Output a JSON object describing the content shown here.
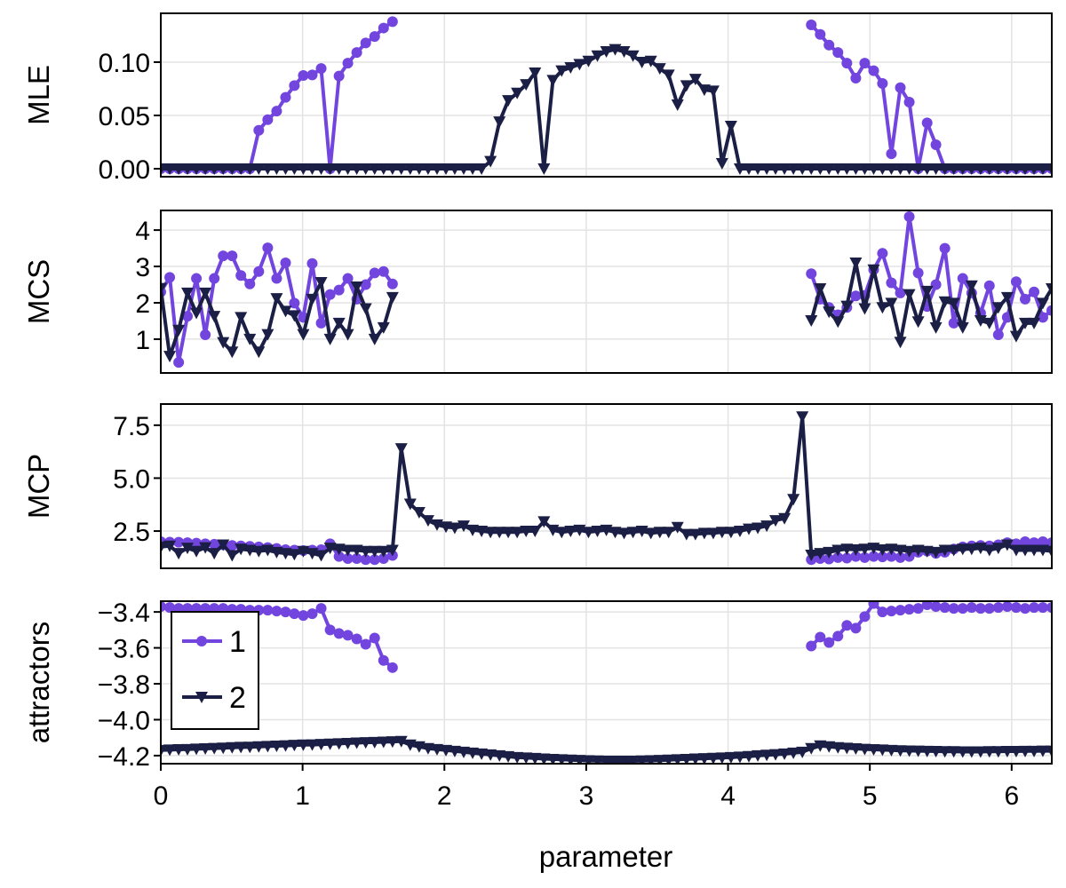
{
  "chart_data": {
    "type": "line",
    "xlabel": "parameter",
    "xlim": [
      0,
      6.283
    ],
    "xticks": [
      0,
      1,
      2,
      3,
      4,
      5,
      6
    ],
    "xtick_labels": [
      "0",
      "1",
      "2",
      "3",
      "4",
      "5",
      "6"
    ],
    "grid": true,
    "colors": {
      "1": "#7245DF",
      "2": "#1B1F45"
    },
    "markers": {
      "1": "circle",
      "2": "triangle-down"
    },
    "x": [
      0.0,
      0.063,
      0.126,
      0.188,
      0.251,
      0.314,
      0.377,
      0.44,
      0.503,
      0.565,
      0.628,
      0.691,
      0.754,
      0.817,
      0.88,
      0.942,
      1.005,
      1.068,
      1.131,
      1.194,
      1.257,
      1.319,
      1.382,
      1.445,
      1.508,
      1.571,
      1.634,
      1.696,
      1.759,
      1.822,
      1.885,
      1.948,
      2.011,
      2.073,
      2.136,
      2.199,
      2.262,
      2.325,
      2.388,
      2.45,
      2.513,
      2.576,
      2.639,
      2.702,
      2.765,
      2.827,
      2.89,
      2.953,
      3.016,
      3.079,
      3.142,
      3.204,
      3.267,
      3.33,
      3.393,
      3.456,
      3.519,
      3.581,
      3.644,
      3.707,
      3.77,
      3.833,
      3.896,
      3.958,
      4.021,
      4.084,
      4.147,
      4.21,
      4.273,
      4.335,
      4.398,
      4.461,
      4.524,
      4.587,
      4.65,
      4.712,
      4.775,
      4.838,
      4.901,
      4.964,
      5.027,
      5.089,
      5.152,
      5.215,
      5.278,
      5.341,
      5.404,
      5.466,
      5.529,
      5.592,
      5.655,
      5.718,
      5.781,
      5.843,
      5.906,
      5.969,
      6.032,
      6.095,
      6.158,
      6.22,
      6.283
    ],
    "panels": [
      {
        "ylabel": "MLE",
        "ylim": [
          -0.0075,
          0.1458
        ],
        "yticks": [
          0,
          0.05,
          0.1
        ],
        "ytick_labels": [
          "0.00",
          "0.05",
          "0.10"
        ],
        "series": [
          {
            "name": "1",
            "values": [
              0,
              0,
              0,
              0,
              0,
              0,
              0,
              0,
              0,
              0,
              0,
              0.036,
              0.046,
              0.054,
              0.067,
              0.078,
              0.0875,
              0.088,
              0.094,
              0,
              0.087,
              0.099,
              0.109,
              0.118,
              0.124,
              0.132,
              0.138,
              null,
              null,
              null,
              null,
              null,
              null,
              null,
              null,
              null,
              null,
              null,
              null,
              null,
              null,
              null,
              null,
              null,
              null,
              null,
              null,
              null,
              null,
              null,
              null,
              null,
              null,
              null,
              null,
              null,
              null,
              null,
              null,
              null,
              null,
              null,
              null,
              null,
              null,
              null,
              null,
              null,
              null,
              null,
              null,
              null,
              null,
              0.135,
              0.126,
              0.116,
              0.109,
              0.099,
              0.085,
              0.099,
              0.092,
              0.08,
              0.014,
              0.076,
              0.0625,
              0,
              0.043,
              0.0225,
              0,
              0,
              0,
              0,
              0,
              0,
              0,
              0,
              0,
              0,
              0,
              0,
              0
            ]
          },
          {
            "name": "2",
            "values": [
              0,
              0,
              0,
              0,
              0,
              0,
              0,
              0,
              0,
              0,
              0,
              0,
              0,
              0,
              0,
              0,
              0,
              0,
              0,
              0,
              0,
              0,
              0,
              0,
              0,
              0,
              0,
              0,
              0,
              0,
              0,
              0,
              0,
              0,
              0,
              0,
              0,
              0.007,
              0.044,
              0.064,
              0.071,
              0.079,
              0.09,
              0,
              0.083,
              0.092,
              0.095,
              0.098,
              0.101,
              0.106,
              0.11,
              0.112,
              0.11,
              0.106,
              0.1,
              0.101,
              0.094,
              0.088,
              0.06,
              0.078,
              0.084,
              0.074,
              0.073,
              0.005,
              0.04,
              0,
              0,
              0,
              0,
              0,
              0,
              0,
              0,
              0,
              0,
              0,
              0,
              0,
              0,
              0,
              0,
              0,
              0,
              0,
              0,
              0,
              0,
              0,
              0,
              0,
              0,
              0,
              0,
              0,
              0,
              0,
              0,
              0,
              0,
              0,
              0
            ]
          }
        ]
      },
      {
        "ylabel": "MCS",
        "ylim": [
          0.07,
          4.54
        ],
        "yticks": [
          1,
          2,
          3,
          4
        ],
        "ytick_labels": [
          "1",
          "2",
          "3",
          "4"
        ],
        "series": [
          {
            "name": "1",
            "values": [
              2.3,
              2.7,
              0.36,
              1.63,
              2.67,
              1.12,
              2.67,
              3.29,
              3.29,
              2.75,
              2.52,
              2.86,
              3.51,
              2.67,
              3.1,
              1.99,
              1.6,
              3.08,
              1.44,
              2.23,
              2.35,
              2.67,
              2.1,
              2.5,
              2.82,
              2.86,
              2.52,
              null,
              null,
              null,
              null,
              null,
              null,
              null,
              null,
              null,
              null,
              null,
              null,
              null,
              null,
              null,
              null,
              null,
              null,
              null,
              null,
              null,
              null,
              null,
              null,
              null,
              null,
              null,
              null,
              null,
              null,
              null,
              null,
              null,
              null,
              null,
              null,
              null,
              null,
              null,
              null,
              null,
              null,
              null,
              null,
              null,
              null,
              2.8,
              2.1,
              1.87,
              1.67,
              1.87,
              2.19,
              2.2,
              2.91,
              3.36,
              2.55,
              2.27,
              4.37,
              2.82,
              1.9,
              2.5,
              3.5,
              1.44,
              2.67,
              2.27,
              1.72,
              2.47,
              1.12,
              1.6,
              2.58,
              2.1,
              2.3,
              1.6,
              1.79
            ]
          },
          {
            "name": "2",
            "values": [
              2.4,
              0.53,
              1.25,
              2.27,
              1.72,
              2.27,
              1.63,
              0.91,
              0.65,
              1.6,
              1.0,
              0.65,
              1.13,
              2.12,
              1.77,
              1.65,
              1.13,
              2.1,
              2.56,
              1.0,
              1.44,
              1.13,
              2.44,
              1.84,
              1.0,
              1.32,
              2.15,
              null,
              null,
              null,
              null,
              null,
              null,
              null,
              null,
              null,
              null,
              null,
              null,
              null,
              null,
              null,
              null,
              null,
              null,
              null,
              null,
              null,
              null,
              null,
              null,
              null,
              null,
              null,
              null,
              null,
              null,
              null,
              null,
              null,
              null,
              null,
              null,
              null,
              null,
              null,
              null,
              null,
              null,
              null,
              null,
              null,
              null,
              1.51,
              2.39,
              1.75,
              1.48,
              1.91,
              3.1,
              1.84,
              2.91,
              1.87,
              1.99,
              0.92,
              2.23,
              1.48,
              2.32,
              1.32,
              2.03,
              1.99,
              1.32,
              2.47,
              1.51,
              1.44,
              1.87,
              2.15,
              1.08,
              1.44,
              1.44,
              1.99,
              2.39
            ]
          }
        ]
      },
      {
        "ylabel": "MCP",
        "ylim": [
          0.74,
          8.5
        ],
        "yticks": [
          2.5,
          5.0,
          7.5
        ],
        "ytick_labels": [
          "2.5",
          "5.0",
          "7.5"
        ],
        "series": [
          {
            "name": "1",
            "values": [
              2.0,
              1.98,
              1.97,
              1.95,
              1.93,
              1.9,
              1.88,
              1.85,
              1.82,
              1.8,
              1.78,
              1.75,
              1.72,
              1.68,
              1.62,
              1.6,
              1.58,
              1.6,
              1.62,
              1.9,
              1.3,
              1.2,
              1.2,
              1.15,
              1.15,
              1.2,
              1.35,
              null,
              null,
              null,
              null,
              null,
              null,
              null,
              null,
              null,
              null,
              null,
              null,
              null,
              null,
              null,
              null,
              null,
              null,
              null,
              null,
              null,
              null,
              null,
              null,
              null,
              null,
              null,
              null,
              null,
              null,
              null,
              null,
              null,
              null,
              null,
              null,
              null,
              null,
              null,
              null,
              null,
              null,
              null,
              null,
              null,
              null,
              1.15,
              1.2,
              1.18,
              1.25,
              1.22,
              1.3,
              1.25,
              1.3,
              1.28,
              1.3,
              1.25,
              1.3,
              1.5,
              1.55,
              1.45,
              1.5,
              1.65,
              1.75,
              1.8,
              1.82,
              1.8,
              1.85,
              1.95,
              1.9,
              2.0,
              1.95,
              2.0,
              1.95
            ]
          },
          {
            "name": "2",
            "values": [
              1.75,
              1.8,
              1.45,
              1.7,
              1.55,
              1.72,
              1.45,
              1.85,
              1.35,
              1.65,
              1.6,
              1.55,
              1.6,
              1.5,
              1.45,
              1.4,
              1.55,
              1.45,
              1.35,
              1.7,
              1.65,
              1.6,
              1.6,
              1.55,
              1.55,
              1.55,
              1.6,
              6.4,
              3.78,
              3.38,
              3.0,
              2.8,
              2.7,
              2.65,
              2.75,
              2.55,
              2.5,
              2.45,
              2.45,
              2.45,
              2.45,
              2.5,
              2.5,
              2.95,
              2.55,
              2.45,
              2.5,
              2.55,
              2.45,
              2.5,
              2.55,
              2.45,
              2.4,
              2.45,
              2.5,
              2.4,
              2.45,
              2.45,
              2.68,
              2.35,
              2.35,
              2.4,
              2.4,
              2.45,
              2.45,
              2.5,
              2.6,
              2.65,
              2.75,
              3.0,
              3.1,
              4.0,
              7.9,
              1.37,
              1.45,
              1.5,
              1.6,
              1.65,
              1.62,
              1.65,
              1.7,
              1.62,
              1.65,
              1.6,
              1.55,
              1.6,
              1.55,
              1.5,
              1.6,
              1.6,
              1.65,
              1.65,
              1.7,
              1.6,
              1.7,
              1.85,
              1.6,
              1.6,
              1.6,
              1.6,
              1.55
            ]
          }
        ]
      },
      {
        "ylabel": "attractors",
        "ylim": [
          -4.245,
          -3.34
        ],
        "yticks": [
          -3.4,
          -3.6,
          -3.8,
          -4.0,
          -4.2
        ],
        "ytick_labels": [
          "−3.4",
          "−3.6",
          "−3.8",
          "−4.0",
          "−4.2"
        ],
        "legend": {
          "position": "top-left",
          "entries": [
            "1",
            "2"
          ]
        },
        "series": [
          {
            "name": "1",
            "values": [
              -3.37,
              -3.375,
              -3.38,
              -3.38,
              -3.38,
              -3.38,
              -3.38,
              -3.38,
              -3.385,
              -3.385,
              -3.39,
              -3.39,
              -3.39,
              -3.395,
              -3.4,
              -3.41,
              -3.42,
              -3.41,
              -3.38,
              -3.5,
              -3.52,
              -3.53,
              -3.55,
              -3.58,
              -3.545,
              -3.67,
              -3.71,
              null,
              null,
              null,
              null,
              null,
              null,
              null,
              null,
              null,
              null,
              null,
              null,
              null,
              null,
              null,
              null,
              null,
              null,
              null,
              null,
              null,
              null,
              null,
              null,
              null,
              null,
              null,
              null,
              null,
              null,
              null,
              null,
              null,
              null,
              null,
              null,
              null,
              null,
              null,
              null,
              null,
              null,
              null,
              null,
              null,
              null,
              -3.59,
              -3.54,
              -3.57,
              -3.535,
              -3.475,
              -3.49,
              -3.426,
              -3.353,
              -3.4,
              -3.395,
              -3.39,
              -3.385,
              -3.38,
              -3.36,
              -3.37,
              -3.375,
              -3.38,
              -3.38,
              -3.375,
              -3.38,
              -3.38,
              -3.375,
              -3.37,
              -3.375,
              -3.38,
              -3.375,
              -3.375,
              -3.375
            ]
          },
          {
            "name": "2",
            "values": [
              -4.17,
              -4.168,
              -4.166,
              -4.165,
              -4.163,
              -4.161,
              -4.159,
              -4.157,
              -4.155,
              -4.153,
              -4.152,
              -4.15,
              -4.148,
              -4.146,
              -4.144,
              -4.142,
              -4.14,
              -4.139,
              -4.137,
              -4.135,
              -4.133,
              -4.131,
              -4.129,
              -4.127,
              -4.126,
              -4.124,
              -4.122,
              -4.12,
              -4.14,
              -4.15,
              -4.16,
              -4.165,
              -4.17,
              -4.175,
              -4.18,
              -4.185,
              -4.19,
              -4.195,
              -4.2,
              -4.205,
              -4.21,
              -4.212,
              -4.215,
              -4.218,
              -4.22,
              -4.222,
              -4.224,
              -4.226,
              -4.228,
              -4.229,
              -4.23,
              -4.23,
              -4.23,
              -4.23,
              -4.229,
              -4.228,
              -4.226,
              -4.224,
              -4.222,
              -4.22,
              -4.218,
              -4.216,
              -4.214,
              -4.212,
              -4.21,
              -4.207,
              -4.204,
              -4.2,
              -4.197,
              -4.194,
              -4.19,
              -4.185,
              -4.18,
              -4.16,
              -4.145,
              -4.15,
              -4.155,
              -4.158,
              -4.161,
              -4.164,
              -4.166,
              -4.168,
              -4.17,
              -4.172,
              -4.173,
              -4.174,
              -4.175,
              -4.176,
              -4.177,
              -4.177,
              -4.178,
              -4.178,
              -4.178,
              -4.177,
              -4.177,
              -4.176,
              -4.176,
              -4.175,
              -4.175,
              -4.174,
              -4.174
            ]
          }
        ]
      }
    ]
  }
}
